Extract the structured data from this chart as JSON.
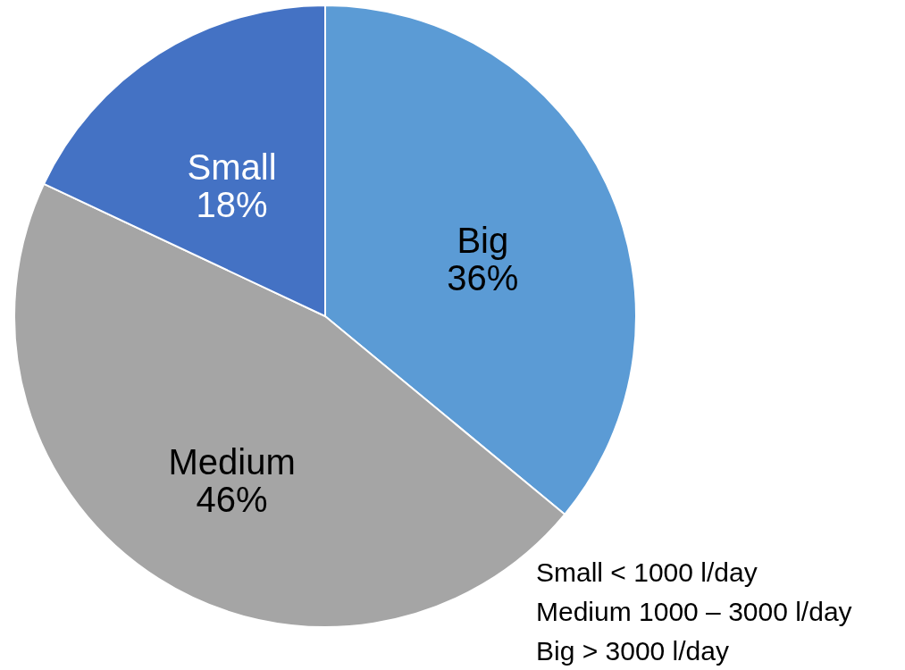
{
  "chart_data": {
    "type": "pie",
    "categories": [
      "Big",
      "Medium",
      "Small"
    ],
    "values": [
      36,
      46,
      18
    ],
    "value_labels": [
      "36%",
      "46%",
      "18%"
    ],
    "colors": [
      "#5b9bd5",
      "#a5a5a5",
      "#4472c4"
    ],
    "annotations": [
      "Small < 1000 l/day",
      "Medium 1000 – 3000 l/day",
      "Big > 3000 l/day"
    ]
  }
}
